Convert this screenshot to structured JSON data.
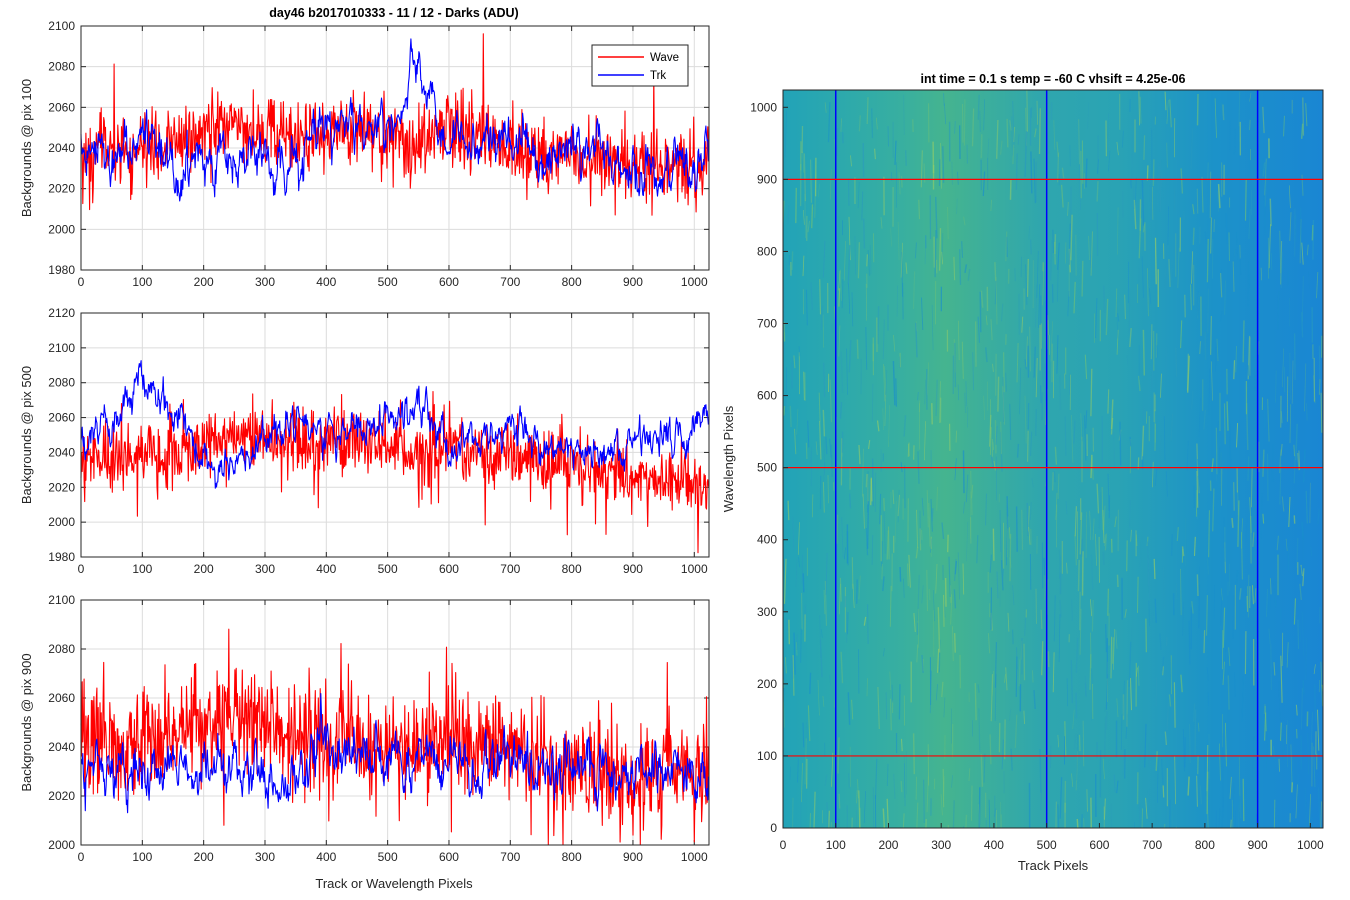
{
  "figure": {
    "left_title": "day46 b2017010333 - 11 / 12 - Darks (ADU)",
    "left_xlabel": "Track or Wavelength Pixels",
    "right_title": "int time = 0.1 s   temp = -60 C   vhsift = 4.25e-06",
    "right_xlabel": "Track Pixels",
    "right_ylabel": "Wavelength Pixels"
  },
  "colors": {
    "wave": "#ff0000",
    "trk": "#0000ff",
    "grid": "#dcdcdc",
    "axis": "#262626"
  },
  "chart_data": [
    {
      "type": "line",
      "title": "day46 b2017010333 - 11 / 12 - Darks (ADU)",
      "xlabel": "",
      "ylabel": "Backgrounds @ pix 100",
      "xlim": [
        0,
        1024
      ],
      "ylim": [
        1980,
        2100
      ],
      "xticks": [
        0,
        100,
        200,
        300,
        400,
        500,
        600,
        700,
        800,
        900,
        1000
      ],
      "yticks": [
        1980,
        2000,
        2020,
        2040,
        2060,
        2080,
        2100
      ],
      "grid": true,
      "legend": "top-right",
      "x": [
        0,
        50,
        100,
        150,
        200,
        250,
        300,
        350,
        400,
        450,
        500,
        550,
        600,
        650,
        700,
        750,
        800,
        850,
        900,
        950,
        1000,
        1023
      ],
      "series": [
        {
          "name": "Wave",
          "values": [
            2036,
            2040,
            2039,
            2042,
            2047,
            2050,
            2046,
            2045,
            2048,
            2050,
            2044,
            2040,
            2050,
            2047,
            2041,
            2037,
            2036,
            2033,
            2027,
            2029,
            2030,
            2032
          ]
        },
        {
          "name": "Trk",
          "values": [
            2044,
            2032,
            2048,
            2027,
            2037,
            2032,
            2038,
            2036,
            2050,
            2055,
            2050,
            2077,
            2044,
            2043,
            2049,
            2036,
            2043,
            2038,
            2028,
            2026,
            2030,
            2040
          ]
        }
      ]
    },
    {
      "type": "line",
      "title": "",
      "xlabel": "",
      "ylabel": "Backgrounds @ pix 500",
      "xlim": [
        0,
        1024
      ],
      "ylim": [
        1980,
        2120
      ],
      "xticks": [
        0,
        100,
        200,
        300,
        400,
        500,
        600,
        700,
        800,
        900,
        1000
      ],
      "yticks": [
        1980,
        2000,
        2020,
        2040,
        2060,
        2080,
        2100,
        2120
      ],
      "grid": true,
      "x": [
        0,
        50,
        100,
        150,
        200,
        250,
        300,
        350,
        400,
        450,
        500,
        550,
        600,
        650,
        700,
        750,
        800,
        850,
        900,
        950,
        1000,
        1023
      ],
      "series": [
        {
          "name": "Wave",
          "values": [
            2034,
            2036,
            2038,
            2040,
            2046,
            2050,
            2048,
            2044,
            2047,
            2048,
            2042,
            2040,
            2045,
            2040,
            2038,
            2034,
            2031,
            2029,
            2027,
            2024,
            2023,
            2025
          ]
        },
        {
          "name": "Trk",
          "values": [
            2050,
            2054,
            2082,
            2068,
            2034,
            2037,
            2048,
            2054,
            2053,
            2055,
            2060,
            2066,
            2040,
            2048,
            2058,
            2038,
            2045,
            2036,
            2048,
            2046,
            2052,
            2056
          ]
        }
      ]
    },
    {
      "type": "line",
      "title": "",
      "xlabel": "Track or Wavelength Pixels",
      "ylabel": "Backgrounds @ pix 900",
      "xlim": [
        0,
        1024
      ],
      "ylim": [
        2000,
        2100
      ],
      "xticks": [
        0,
        100,
        200,
        300,
        400,
        500,
        600,
        700,
        800,
        900,
        1000
      ],
      "yticks": [
        2000,
        2020,
        2040,
        2060,
        2080,
        2100
      ],
      "grid": true,
      "x": [
        0,
        50,
        100,
        150,
        200,
        250,
        300,
        350,
        400,
        450,
        500,
        550,
        600,
        650,
        700,
        750,
        800,
        850,
        900,
        950,
        1000,
        1023
      ],
      "series": [
        {
          "name": "Wave",
          "values": [
            2040,
            2043,
            2045,
            2046,
            2050,
            2054,
            2050,
            2045,
            2044,
            2043,
            2042,
            2040,
            2044,
            2041,
            2037,
            2035,
            2031,
            2030,
            2028,
            2030,
            2031,
            2032
          ]
        },
        {
          "name": "Trk",
          "values": [
            2031,
            2033,
            2031,
            2030,
            2031,
            2030,
            2030,
            2029,
            2043,
            2037,
            2035,
            2030,
            2036,
            2033,
            2035,
            2032,
            2033,
            2034,
            2030,
            2029,
            2030,
            2031
          ]
        }
      ]
    },
    {
      "type": "heatmap",
      "title": "int time = 0.1 s   temp = -60 C   vhsift = 4.25e-06",
      "xlabel": "Track Pixels",
      "ylabel": "Wavelength Pixels",
      "xlim": [
        0,
        1024
      ],
      "ylim": [
        0,
        1024
      ],
      "xticks": [
        0,
        100,
        200,
        300,
        400,
        500,
        600,
        700,
        800,
        900,
        1000
      ],
      "yticks": [
        0,
        100,
        200,
        300,
        400,
        500,
        600,
        700,
        800,
        900,
        1000
      ],
      "colormap": "parula",
      "vertical_markers": [
        100,
        500,
        900
      ],
      "horizontal_markers": [
        100,
        500,
        900
      ],
      "vertical_marker_color": "#0000ff",
      "horizontal_marker_color": "#ff0000"
    }
  ]
}
